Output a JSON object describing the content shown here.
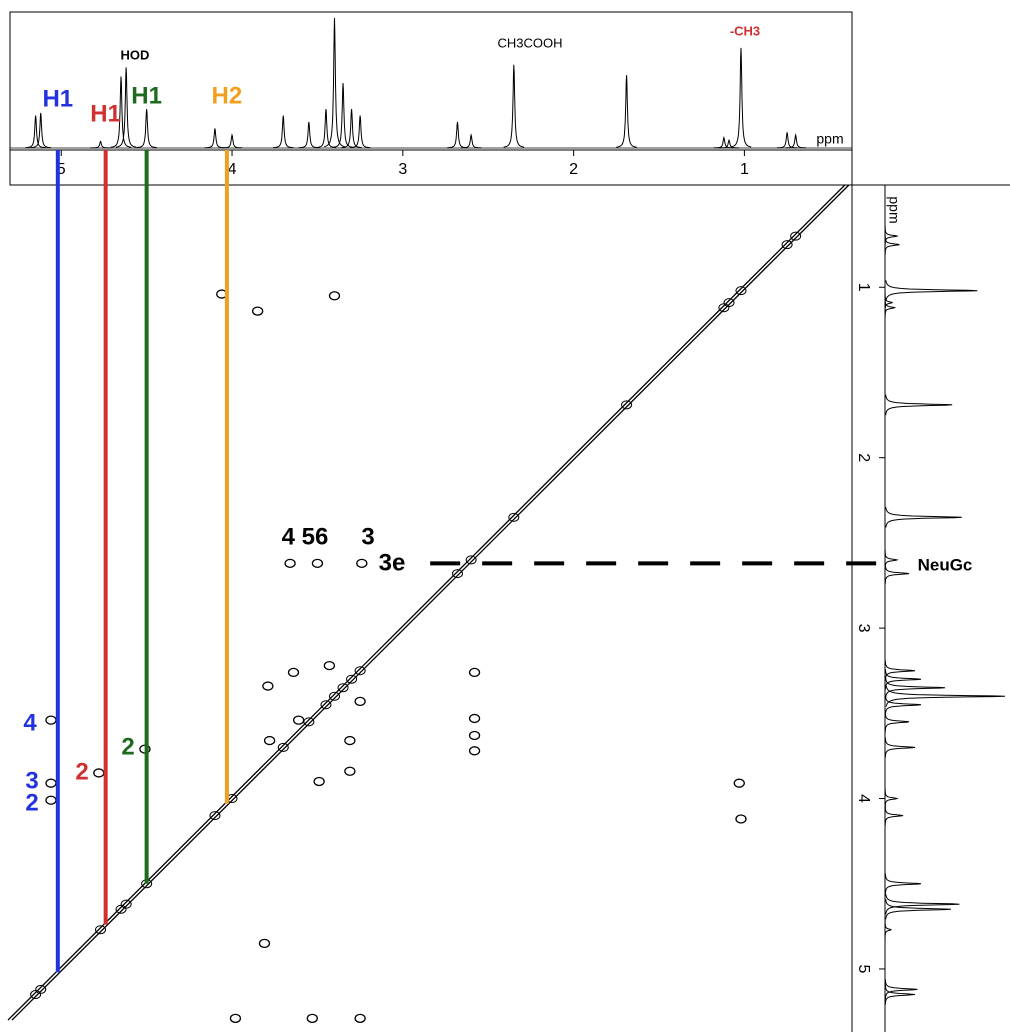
{
  "top_axis": {
    "label": "ppm",
    "lim": [
      5.3,
      0.37
    ],
    "ticks": [
      5,
      4,
      3,
      2,
      1
    ]
  },
  "side_axis": {
    "label": "ppm",
    "lim": [
      0.4,
      5.37
    ],
    "ticks": [
      1,
      2,
      3,
      4,
      5
    ]
  },
  "peaks": [
    [
      5.15,
      0.25
    ],
    [
      5.12,
      0.27
    ],
    [
      4.77,
      0.05
    ],
    [
      4.65,
      0.55
    ],
    [
      4.62,
      0.62
    ],
    [
      4.5,
      0.3
    ],
    [
      4.1,
      0.15
    ],
    [
      4.0,
      0.1
    ],
    [
      3.7,
      0.25
    ],
    [
      3.55,
      0.2
    ],
    [
      3.45,
      0.3
    ],
    [
      3.4,
      1.0
    ],
    [
      3.35,
      0.5
    ],
    [
      3.3,
      0.3
    ],
    [
      3.25,
      0.25
    ],
    [
      2.68,
      0.2
    ],
    [
      2.6,
      0.1
    ],
    [
      2.35,
      0.64
    ],
    [
      1.69,
      0.56
    ],
    [
      1.12,
      0.08
    ],
    [
      1.09,
      0.06
    ],
    [
      1.02,
      0.77
    ],
    [
      0.75,
      0.12
    ],
    [
      0.7,
      0.1
    ]
  ],
  "cross_peaks": [
    [
      4.06,
      1.04
    ],
    [
      3.85,
      1.14
    ],
    [
      3.4,
      1.05
    ],
    [
      3.66,
      2.62
    ],
    [
      3.5,
      2.62
    ],
    [
      3.24,
      2.62
    ],
    [
      5.06,
      3.54
    ],
    [
      5.06,
      3.91
    ],
    [
      5.06,
      4.01
    ],
    [
      4.78,
      3.85
    ],
    [
      4.51,
      3.71
    ],
    [
      2.58,
      3.26
    ],
    [
      2.58,
      3.53
    ],
    [
      2.58,
      3.63
    ],
    [
      2.58,
      3.72
    ],
    [
      1.03,
      3.91
    ],
    [
      1.02,
      4.12
    ],
    [
      3.79,
      3.34
    ],
    [
      3.64,
      3.26
    ],
    [
      3.43,
      3.22
    ],
    [
      3.61,
      3.54
    ],
    [
      3.25,
      3.43
    ],
    [
      3.31,
      3.66
    ],
    [
      3.78,
      3.66
    ],
    [
      3.49,
      3.9
    ],
    [
      3.31,
      3.84
    ],
    [
      3.98,
      5.29
    ],
    [
      3.81,
      4.85
    ],
    [
      3.53,
      5.29
    ],
    [
      3.25,
      5.29
    ]
  ],
  "assignments": [
    {
      "label": "H1",
      "color": "#2233dd",
      "ppm": 5.02
    },
    {
      "label": "H1",
      "color": "#d03030",
      "ppm": 4.74
    },
    {
      "label": "H1",
      "color": "#1e6b1e",
      "ppm": 4.5
    },
    {
      "label": "H2",
      "color": "#f0a020",
      "ppm": 4.03
    }
  ],
  "annotations": [
    {
      "text": "HOD",
      "color": "#000000"
    },
    {
      "text": "CH3COOH",
      "color": "#000000"
    },
    {
      "text": "-CH3",
      "color": "#d03030"
    },
    {
      "text": "4",
      "color": "#2233dd"
    },
    {
      "text": "3",
      "color": "#2233dd"
    },
    {
      "text": "2",
      "color": "#2233dd"
    },
    {
      "text": "2",
      "color": "#d03030"
    },
    {
      "text": "2",
      "color": "#1e6b1e"
    },
    {
      "text": "4 56",
      "color": "#000000"
    },
    {
      "text": "3",
      "color": "#000000"
    },
    {
      "text": "3e",
      "color": "#000000"
    }
  ],
  "dashed_line": {
    "ppm": 2.62,
    "from_ppm": 2.84,
    "label": "NeuGc"
  }
}
